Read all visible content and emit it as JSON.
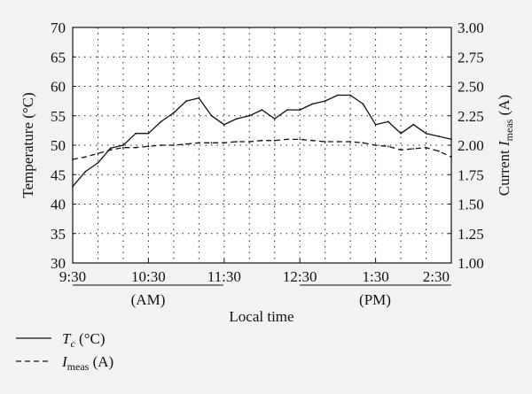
{
  "chart_data": {
    "type": "line",
    "x": [
      "9:30",
      "9:40",
      "9:50",
      "10:00",
      "10:10",
      "10:20",
      "10:30",
      "10:40",
      "10:50",
      "11:00",
      "11:10",
      "11:20",
      "11:30",
      "11:40",
      "11:50",
      "12:00",
      "12:10",
      "12:20",
      "12:30",
      "12:40",
      "12:50",
      "13:00",
      "13:10",
      "13:20",
      "13:30",
      "13:40",
      "13:50",
      "14:00",
      "14:10",
      "14:20",
      "14:30"
    ],
    "xlabel": "Local time",
    "xticks": [
      {
        "value": "9:30",
        "label": "9:30"
      },
      {
        "value": "10:30",
        "label": "10:30"
      },
      {
        "value": "11:30",
        "label": "11:30"
      },
      {
        "value": "12:30",
        "label": "12:30"
      },
      {
        "value": "13:30",
        "label": "1:30"
      },
      {
        "value": "14:30",
        "label": "2:30"
      }
    ],
    "am_label": "(AM)",
    "pm_label": "(PM)",
    "y_left": {
      "label": "Temperature (°C)",
      "range": [
        30,
        70
      ],
      "ticks": [
        30,
        35,
        40,
        45,
        50,
        55,
        60,
        65,
        70
      ]
    },
    "y_right": {
      "label_main": "Current ",
      "label_var": "I",
      "label_sub": "meas",
      "label_unit": " (A)",
      "range": [
        1.0,
        3.0
      ],
      "ticks": [
        "1.00",
        "1.25",
        "1.50",
        "1.75",
        "2.00",
        "2.25",
        "2.50",
        "2.75",
        "3.00"
      ]
    },
    "grid": true,
    "legend_position": "below",
    "series": [
      {
        "name": "Tc (°C)",
        "legend_var": "T",
        "legend_sub": "c",
        "legend_unit": " (°C)",
        "axis": "left",
        "style": "solid",
        "color": "#111111",
        "values": [
          43,
          45.5,
          47,
          49.5,
          50,
          52,
          52,
          54,
          55.5,
          57.5,
          58,
          55,
          53.5,
          54.5,
          55,
          56,
          54.5,
          56,
          56,
          57,
          57.5,
          58.5,
          58.5,
          57,
          53.5,
          54,
          52,
          53.5,
          52,
          51.5,
          51
        ]
      },
      {
        "name": "Imeas (A)",
        "legend_var": "I",
        "legend_sub": "meas",
        "legend_unit": " (A)",
        "axis": "right",
        "style": "dashed",
        "color": "#111111",
        "values": [
          1.88,
          1.9,
          1.93,
          1.96,
          1.98,
          1.98,
          1.99,
          2.0,
          2.0,
          2.01,
          2.02,
          2.02,
          2.02,
          2.03,
          2.03,
          2.04,
          2.04,
          2.05,
          2.05,
          2.04,
          2.03,
          2.03,
          2.03,
          2.02,
          2.0,
          1.99,
          1.96,
          1.97,
          1.98,
          1.95,
          1.9
        ]
      }
    ]
  }
}
